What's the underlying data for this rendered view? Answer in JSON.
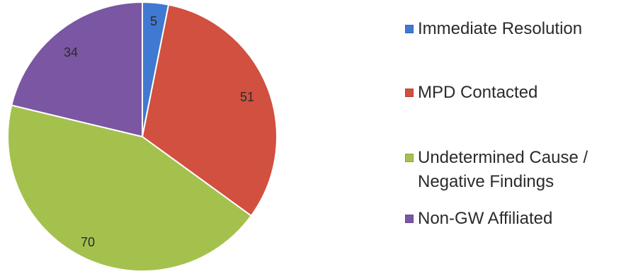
{
  "chart_data": {
    "type": "pie",
    "title": "",
    "slices": [
      {
        "label": "Immediate Resolution",
        "value": 5,
        "color": "#3f79d1"
      },
      {
        "label": "MPD Contacted",
        "value": 51,
        "color": "#d1503f"
      },
      {
        "label": "Undetermined Cause /\nNegative Findings",
        "value": 70,
        "color": "#a4c14d"
      },
      {
        "label": "Non-GW Affiliated",
        "value": 34,
        "color": "#7a56a3"
      }
    ],
    "legend_position": "right",
    "data_labels": true
  }
}
